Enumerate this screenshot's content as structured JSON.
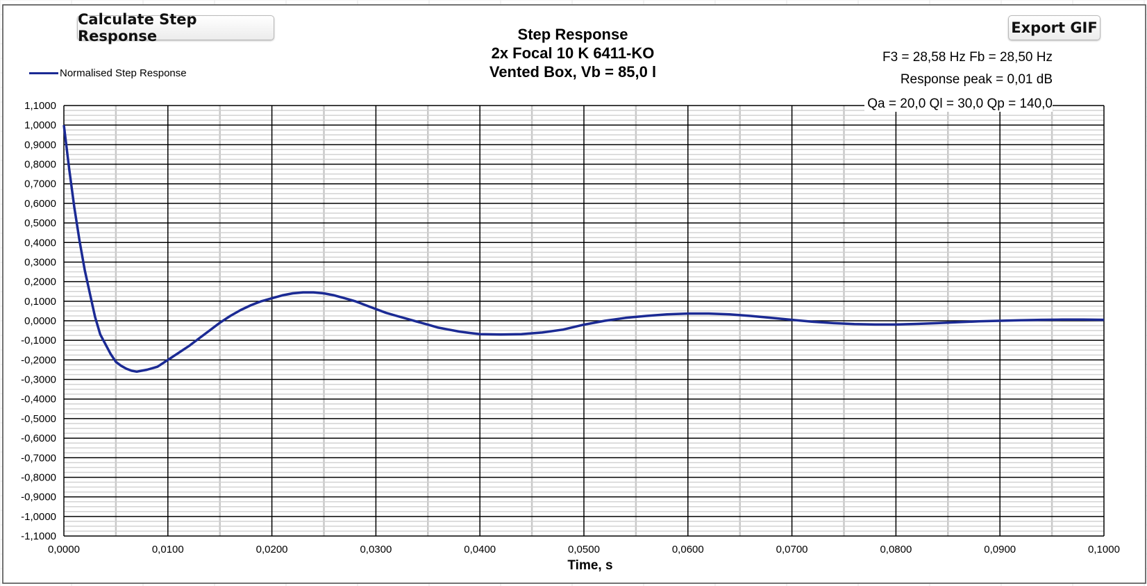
{
  "buttons": {
    "calculate_label": "Calculate Step Response",
    "export_label": "Export GIF"
  },
  "info": {
    "line1": "F3 = 28,58 Hz  Fb = 28,50 Hz",
    "line2": "Response peak = 0,01 dB",
    "line3": "Qa = 20,0  Ql = 30,0  Qp = 140,0"
  },
  "chart_data": {
    "type": "line",
    "title": "Step Response",
    "subtitle": [
      "2x Focal 10 K 6411-KO",
      "Vented Box, Vb = 85,0 l"
    ],
    "xlabel": "Time, s",
    "ylabel": "",
    "xlim": [
      0,
      0.1
    ],
    "ylim": [
      -1.1,
      1.1
    ],
    "x_tick_step": 0.01,
    "y_tick_step": 0.1,
    "x_tick_labels": [
      "0,0000",
      "0,0100",
      "0,0200",
      "0,0300",
      "0,0400",
      "0,0500",
      "0,0600",
      "0,0700",
      "0,0800",
      "0,0900",
      "0,1000"
    ],
    "y_tick_labels": [
      "1,1000",
      "1,0000",
      "0,9000",
      "0,8000",
      "0,7000",
      "0,6000",
      "0,5000",
      "0,4000",
      "0,3000",
      "0,2000",
      "0,1000",
      "0,0000",
      "-0,1000",
      "-0,2000",
      "-0,3000",
      "-0,4000",
      "-0,5000",
      "-0,6000",
      "-0,7000",
      "-0,8000",
      "-0,9000",
      "-1,0000",
      "-1,1000"
    ],
    "grid": true,
    "legend_position": "top-left",
    "series": [
      {
        "name": "Normalised Step Response",
        "color": "#1b2a94",
        "x": [
          0,
          0.0005,
          0.001,
          0.0015,
          0.002,
          0.0025,
          0.003,
          0.0035,
          0.004,
          0.0045,
          0.005,
          0.0055,
          0.006,
          0.0065,
          0.007,
          0.0075,
          0.008,
          0.009,
          0.01,
          0.011,
          0.012,
          0.013,
          0.014,
          0.015,
          0.016,
          0.017,
          0.018,
          0.019,
          0.02,
          0.021,
          0.022,
          0.023,
          0.024,
          0.025,
          0.026,
          0.027,
          0.028,
          0.029,
          0.03,
          0.031,
          0.032,
          0.033,
          0.034,
          0.035,
          0.036,
          0.037,
          0.038,
          0.039,
          0.04,
          0.042,
          0.044,
          0.046,
          0.048,
          0.05,
          0.052,
          0.054,
          0.056,
          0.058,
          0.06,
          0.062,
          0.064,
          0.066,
          0.068,
          0.07,
          0.072,
          0.074,
          0.076,
          0.078,
          0.08,
          0.082,
          0.084,
          0.086,
          0.088,
          0.09,
          0.092,
          0.094,
          0.096,
          0.098,
          0.1
        ],
        "y": [
          1.0,
          0.78,
          0.58,
          0.41,
          0.26,
          0.14,
          0.02,
          -0.07,
          -0.12,
          -0.17,
          -0.21,
          -0.23,
          -0.245,
          -0.255,
          -0.26,
          -0.255,
          -0.25,
          -0.235,
          -0.2,
          -0.165,
          -0.13,
          -0.09,
          -0.05,
          -0.01,
          0.025,
          0.055,
          0.08,
          0.1,
          0.115,
          0.13,
          0.14,
          0.145,
          0.145,
          0.14,
          0.13,
          0.115,
          0.1,
          0.08,
          0.06,
          0.04,
          0.025,
          0.01,
          -0.005,
          -0.02,
          -0.035,
          -0.045,
          -0.055,
          -0.062,
          -0.068,
          -0.07,
          -0.068,
          -0.06,
          -0.045,
          -0.02,
          0.0,
          0.015,
          0.025,
          0.033,
          0.037,
          0.037,
          0.033,
          0.025,
          0.015,
          0.005,
          -0.005,
          -0.012,
          -0.017,
          -0.019,
          -0.019,
          -0.016,
          -0.012,
          -0.007,
          -0.003,
          0.0,
          0.003,
          0.005,
          0.006,
          0.006,
          0.005
        ]
      }
    ]
  }
}
